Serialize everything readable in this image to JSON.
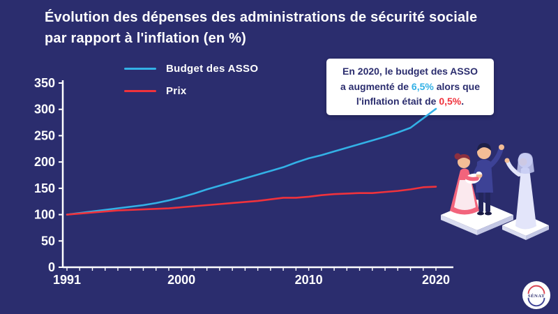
{
  "title": {
    "line1": "Évolution des dépenses des administrations de sécurité sociale",
    "line2": "par rapport à l'inflation (en %)"
  },
  "legend": [
    {
      "label": "Budget des ASSO",
      "color": "#33b1e6"
    },
    {
      "label": "Prix",
      "color": "#f0323c"
    }
  ],
  "annotation": {
    "line1": "En 2020, le budget des ASSO",
    "line2_pre": "a augmenté de ",
    "line2_value": "6,5%",
    "line2_post": " alors que",
    "line3_pre": "l'inflation était de ",
    "line3_value": "0,5%",
    "line3_end": "."
  },
  "chart_data": {
    "type": "line",
    "title": "Évolution des dépenses des administrations de sécurité sociale par rapport à l'inflation (en %)",
    "x": [
      1991,
      1992,
      1993,
      1994,
      1995,
      1996,
      1997,
      1998,
      1999,
      2000,
      2001,
      2002,
      2003,
      2004,
      2005,
      2006,
      2007,
      2008,
      2009,
      2010,
      2011,
      2012,
      2013,
      2014,
      2015,
      2016,
      2017,
      2018,
      2019,
      2020
    ],
    "series": [
      {
        "name": "Budget des ASSO",
        "color": "#33b1e6",
        "values": [
          100,
          103,
          106,
          109,
          112,
          115,
          118,
          122,
          127,
          133,
          140,
          148,
          155,
          162,
          169,
          176,
          183,
          190,
          199,
          207,
          213,
          220,
          227,
          234,
          241,
          248,
          256,
          265,
          283,
          301
        ]
      },
      {
        "name": "Prix",
        "color": "#f0323c",
        "values": [
          100,
          102,
          104,
          106,
          108,
          109,
          110,
          111,
          112,
          114,
          116,
          118,
          120,
          122,
          124,
          126,
          129,
          132,
          132,
          134,
          137,
          139,
          140,
          141,
          141,
          143,
          145,
          148,
          152,
          153
        ]
      }
    ],
    "ylim": [
      0,
      350
    ],
    "yticks": [
      0,
      50,
      100,
      150,
      200,
      250,
      300,
      350
    ],
    "xticks": [
      1991,
      2000,
      2010,
      2020
    ],
    "grid": false,
    "legend_position": "top-left"
  },
  "colors": {
    "background": "#2b2d6e",
    "axis": "#ffffff",
    "budget_line": "#33b1e6",
    "prix_line": "#f0323c",
    "annotation_bg": "#ffffff",
    "annotation_text": "#2b2d6e"
  },
  "footer": {
    "logo_text": "SÉNAT"
  }
}
